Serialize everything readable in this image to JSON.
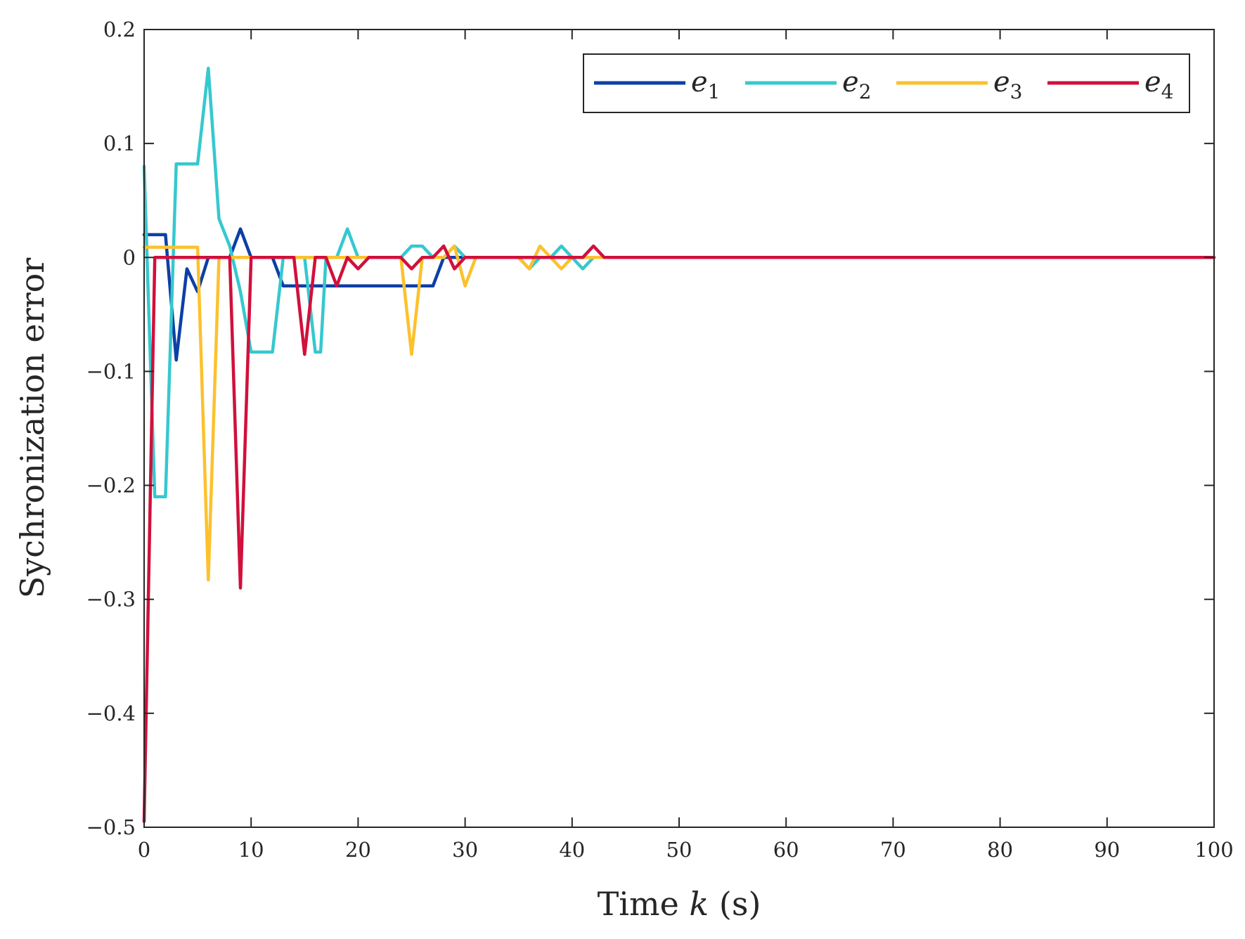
{
  "chart_data": {
    "type": "line",
    "title": "",
    "xlabel_parts": [
      "Time ",
      "k",
      " (s)"
    ],
    "ylabel": "Sychronization error",
    "xlim": [
      0,
      100
    ],
    "ylim": [
      -0.5,
      0.2
    ],
    "xticks": [
      0,
      10,
      20,
      30,
      40,
      50,
      60,
      70,
      80,
      90,
      100
    ],
    "xtick_labels": [
      "0",
      "10",
      "20",
      "30",
      "40",
      "50",
      "60",
      "70",
      "80",
      "90",
      "100"
    ],
    "yticks": [
      -0.5,
      -0.4,
      -0.3,
      -0.2,
      -0.1,
      0,
      0.1,
      0.2
    ],
    "ytick_labels": [
      "−0.5",
      "−0.4",
      "−0.3",
      "−0.2",
      "−0.1",
      "0",
      "0.1",
      "0.2"
    ],
    "grid": false,
    "legend_position": "top-right",
    "series": [
      {
        "name": "e1",
        "legend_base": "e",
        "legend_sub": "1",
        "color": "#0d3fa6",
        "points": [
          [
            0,
            0.02
          ],
          [
            2,
            0.02
          ],
          [
            3,
            -0.09
          ],
          [
            4,
            -0.01
          ],
          [
            5,
            -0.03
          ],
          [
            6,
            0
          ],
          [
            8,
            0
          ],
          [
            9,
            0.025
          ],
          [
            10,
            0
          ],
          [
            12,
            0
          ],
          [
            13,
            -0.025
          ],
          [
            18,
            -0.025
          ],
          [
            27,
            -0.025
          ],
          [
            28,
            0
          ],
          [
            100,
            0
          ]
        ]
      },
      {
        "name": "e2",
        "legend_base": "e",
        "legend_sub": "2",
        "color": "#36c8cf",
        "points": [
          [
            0,
            0.08
          ],
          [
            1,
            -0.21
          ],
          [
            2,
            -0.21
          ],
          [
            3,
            0.082
          ],
          [
            5,
            0.082
          ],
          [
            6,
            0.166
          ],
          [
            7,
            0.034
          ],
          [
            8,
            0.01
          ],
          [
            9,
            -0.03
          ],
          [
            10,
            -0.083
          ],
          [
            12,
            -0.083
          ],
          [
            13,
            0
          ],
          [
            15,
            0
          ],
          [
            16,
            -0.083
          ],
          [
            16.5,
            -0.083
          ],
          [
            17,
            0
          ],
          [
            18,
            0
          ],
          [
            19,
            0.025
          ],
          [
            20,
            0
          ],
          [
            24,
            0
          ],
          [
            25,
            0.01
          ],
          [
            26,
            0.01
          ],
          [
            27,
            0
          ],
          [
            28,
            0
          ],
          [
            29,
            0.01
          ],
          [
            30,
            0
          ],
          [
            35,
            0
          ],
          [
            36,
            -0.01
          ],
          [
            37,
            0
          ],
          [
            38,
            0
          ],
          [
            39,
            0.01
          ],
          [
            40,
            0
          ],
          [
            41,
            -0.01
          ],
          [
            42,
            0
          ],
          [
            100,
            0
          ]
        ]
      },
      {
        "name": "e3",
        "legend_base": "e",
        "legend_sub": "3",
        "color": "#fcc12d",
        "points": [
          [
            0,
            0.009
          ],
          [
            5,
            0.009
          ],
          [
            6,
            -0.283
          ],
          [
            7,
            0
          ],
          [
            24,
            0
          ],
          [
            25,
            -0.085
          ],
          [
            26,
            0
          ],
          [
            28,
            0
          ],
          [
            29,
            0.01
          ],
          [
            30,
            -0.025
          ],
          [
            31,
            0
          ],
          [
            35,
            0
          ],
          [
            36,
            -0.01
          ],
          [
            37,
            0.01
          ],
          [
            38,
            0
          ],
          [
            39,
            -0.01
          ],
          [
            40,
            0
          ],
          [
            100,
            0
          ]
        ]
      },
      {
        "name": "e4",
        "legend_base": "e",
        "legend_sub": "4",
        "color": "#d1103c",
        "points": [
          [
            0,
            -0.495
          ],
          [
            1,
            0
          ],
          [
            8,
            0
          ],
          [
            9,
            -0.29
          ],
          [
            10,
            0
          ],
          [
            14,
            0
          ],
          [
            15,
            -0.085
          ],
          [
            16,
            0
          ],
          [
            17,
            0
          ],
          [
            18,
            -0.025
          ],
          [
            19,
            0
          ],
          [
            20,
            -0.01
          ],
          [
            21,
            0
          ],
          [
            24,
            0
          ],
          [
            25,
            -0.01
          ],
          [
            26,
            0
          ],
          [
            27,
            0
          ],
          [
            28,
            0.01
          ],
          [
            29,
            -0.01
          ],
          [
            30,
            0
          ],
          [
            41,
            0
          ],
          [
            42,
            0.01
          ],
          [
            43,
            0
          ],
          [
            100,
            0
          ]
        ]
      }
    ]
  }
}
